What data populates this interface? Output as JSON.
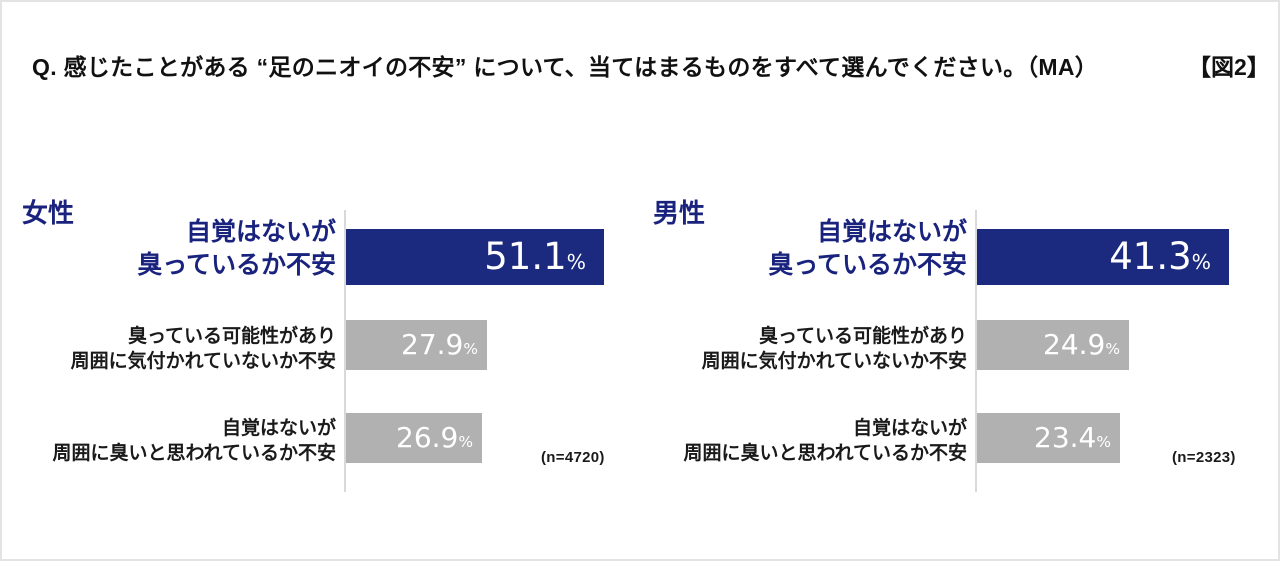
{
  "page": {
    "title": "Q. 感じたことがある “足のニオイの不安” について、当てはまるものをすべて選んでください。（MA）",
    "figure_label": "【図2】"
  },
  "colors": {
    "navy_bar": "#1b2a7e",
    "navy_text": "#19237e",
    "gray_bar": "#b1b1b1",
    "axis_line": "#d9d9d9",
    "text": "#111111",
    "value_text": "#ffffff"
  },
  "chart_data": [
    {
      "type": "bar",
      "orientation": "horizontal",
      "group_title": "女性",
      "n_label": "(n=4720)",
      "unit": "%",
      "xlim": [
        0,
        57.5
      ],
      "grid": false,
      "legend": false,
      "categories": [
        "自覚はないが臭っているか不安",
        "臭っている可能性があり周囲に気付かれていないか不安",
        "自覚はないが周囲に臭いと思われているか不安"
      ],
      "values": [
        51.1,
        27.9,
        26.9
      ],
      "rows": [
        {
          "label_line1": "自覚はないが",
          "label_line2": "臭っているか不安",
          "value": 51.1,
          "value_text": "51.1",
          "unit": "%",
          "color": "#1b2a7e",
          "emphasis": true
        },
        {
          "label_line1": "臭っている可能性があり",
          "label_line2": "周囲に気付かれていないか不安",
          "value": 27.9,
          "value_text": "27.9",
          "unit": "%",
          "color": "#b1b1b1",
          "emphasis": false
        },
        {
          "label_line1": "自覚はないが",
          "label_line2": "周囲に臭いと思われているか不安",
          "value": 26.9,
          "value_text": "26.9",
          "unit": "%",
          "color": "#b1b1b1",
          "emphasis": false
        }
      ]
    },
    {
      "type": "bar",
      "orientation": "horizontal",
      "group_title": "男性",
      "n_label": "(n=2323)",
      "unit": "%",
      "xlim": [
        0,
        47.5
      ],
      "grid": false,
      "legend": false,
      "categories": [
        "自覚はないが臭っているか不安",
        "臭っている可能性があり周囲に気付かれていないか不安",
        "自覚はないが周囲に臭いと思われているか不安"
      ],
      "values": [
        41.3,
        24.9,
        23.4
      ],
      "rows": [
        {
          "label_line1": "自覚はないが",
          "label_line2": "臭っているか不安",
          "value": 41.3,
          "value_text": "41.3",
          "unit": "%",
          "color": "#1b2a7e",
          "emphasis": true
        },
        {
          "label_line1": "臭っている可能性があり",
          "label_line2": "周囲に気付かれていないか不安",
          "value": 24.9,
          "value_text": "24.9",
          "unit": "%",
          "color": "#b1b1b1",
          "emphasis": false
        },
        {
          "label_line1": "自覚はないが",
          "label_line2": "周囲に臭いと思われているか不安",
          "value": 23.4,
          "value_text": "23.4",
          "unit": "%",
          "color": "#b1b1b1",
          "emphasis": false
        }
      ]
    }
  ]
}
